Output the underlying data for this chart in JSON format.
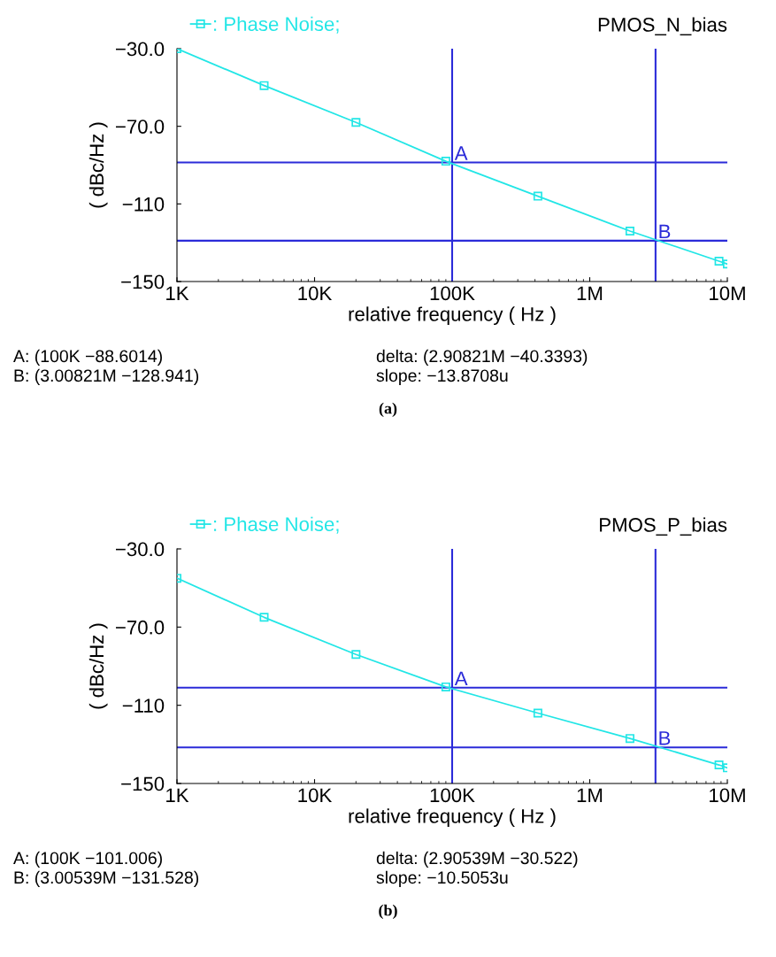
{
  "chart_data": [
    {
      "type": "line",
      "title": "PMOS_N_bias",
      "xlabel": "relative frequency ( Hz )",
      "ylabel": "( dBc/Hz )",
      "log": "x",
      "xlim": [
        1000,
        10000000
      ],
      "xticks": [
        {
          "value": 1000,
          "label": "1K"
        },
        {
          "value": 10000,
          "label": "10K"
        },
        {
          "value": 100000,
          "label": "100K"
        },
        {
          "value": 1000000,
          "label": "1M"
        },
        {
          "value": 10000000,
          "label": "10M"
        }
      ],
      "ylim": [
        -150,
        -30
      ],
      "yticks": [
        {
          "value": -30,
          "label": "−30.0"
        },
        {
          "value": -70,
          "label": "−70.0"
        },
        {
          "value": -110,
          "label": "−110"
        },
        {
          "value": -150,
          "label": "−150"
        }
      ],
      "grid": false,
      "legend": "top left",
      "series": [
        {
          "name": ": Phase Noise;",
          "color": "#22e6e6",
          "marker": "square",
          "x": [
            1000,
            4300,
            20000,
            90000,
            420000,
            1960000,
            8700000,
            10000000
          ],
          "values": [
            -30,
            -49,
            -68,
            -88,
            -106,
            -124,
            -139.5,
            -141
          ]
        }
      ],
      "ref_lines": [
        {
          "axis": "x",
          "value": 100000,
          "color": "#2b2bd9"
        },
        {
          "axis": "x",
          "value": 3008210,
          "color": "#2b2bd9"
        },
        {
          "axis": "y",
          "value": -88.6014,
          "color": "#2b2bd9"
        },
        {
          "axis": "y",
          "value": -128.941,
          "color": "#2b2bd9"
        }
      ],
      "annotations": [
        {
          "text": "A",
          "x": 100000,
          "y": -88.6014
        },
        {
          "text": "B",
          "x": 3008210,
          "y": -128.941
        },
        "A: (100K −88.6014)",
        "delta: (2.90821M −40.3393)",
        "B: (3.00821M −128.941)",
        "slope: −13.8708u",
        "(a)"
      ]
    },
    {
      "type": "line",
      "title": "PMOS_P_bias",
      "xlabel": "relative frequency ( Hz )",
      "ylabel": "( dBc/Hz )",
      "log": "x",
      "xlim": [
        1000,
        10000000
      ],
      "xticks": [
        {
          "value": 1000,
          "label": "1K"
        },
        {
          "value": 10000,
          "label": "10K"
        },
        {
          "value": 100000,
          "label": "100K"
        },
        {
          "value": 1000000,
          "label": "1M"
        },
        {
          "value": 10000000,
          "label": "10M"
        }
      ],
      "ylim": [
        -150,
        -30
      ],
      "yticks": [
        {
          "value": -30,
          "label": "−30.0"
        },
        {
          "value": -70,
          "label": "−70.0"
        },
        {
          "value": -110,
          "label": "−110"
        },
        {
          "value": -150,
          "label": "−150"
        }
      ],
      "grid": false,
      "legend": "top left",
      "series": [
        {
          "name": ": Phase Noise;",
          "color": "#22e6e6",
          "marker": "square",
          "x": [
            1000,
            4300,
            20000,
            90000,
            420000,
            1960000,
            8700000,
            10000000
          ],
          "values": [
            -45,
            -65,
            -84,
            -100.6,
            -114,
            -127,
            -140.5,
            -142
          ]
        }
      ],
      "ref_lines": [
        {
          "axis": "x",
          "value": 100000,
          "color": "#2b2bd9"
        },
        {
          "axis": "x",
          "value": 3005390,
          "color": "#2b2bd9"
        },
        {
          "axis": "y",
          "value": -101.006,
          "color": "#2b2bd9"
        },
        {
          "axis": "y",
          "value": -131.528,
          "color": "#2b2bd9"
        }
      ],
      "annotations": [
        {
          "text": "A",
          "x": 100000,
          "y": -101.006
        },
        {
          "text": "B",
          "x": 3005390,
          "y": -131.528
        },
        "A: (100K −101.006)",
        "delta: (2.90539M −30.522)",
        "B: (3.00539M −131.528)",
        "slope: −10.5053u",
        "(b)"
      ]
    }
  ]
}
